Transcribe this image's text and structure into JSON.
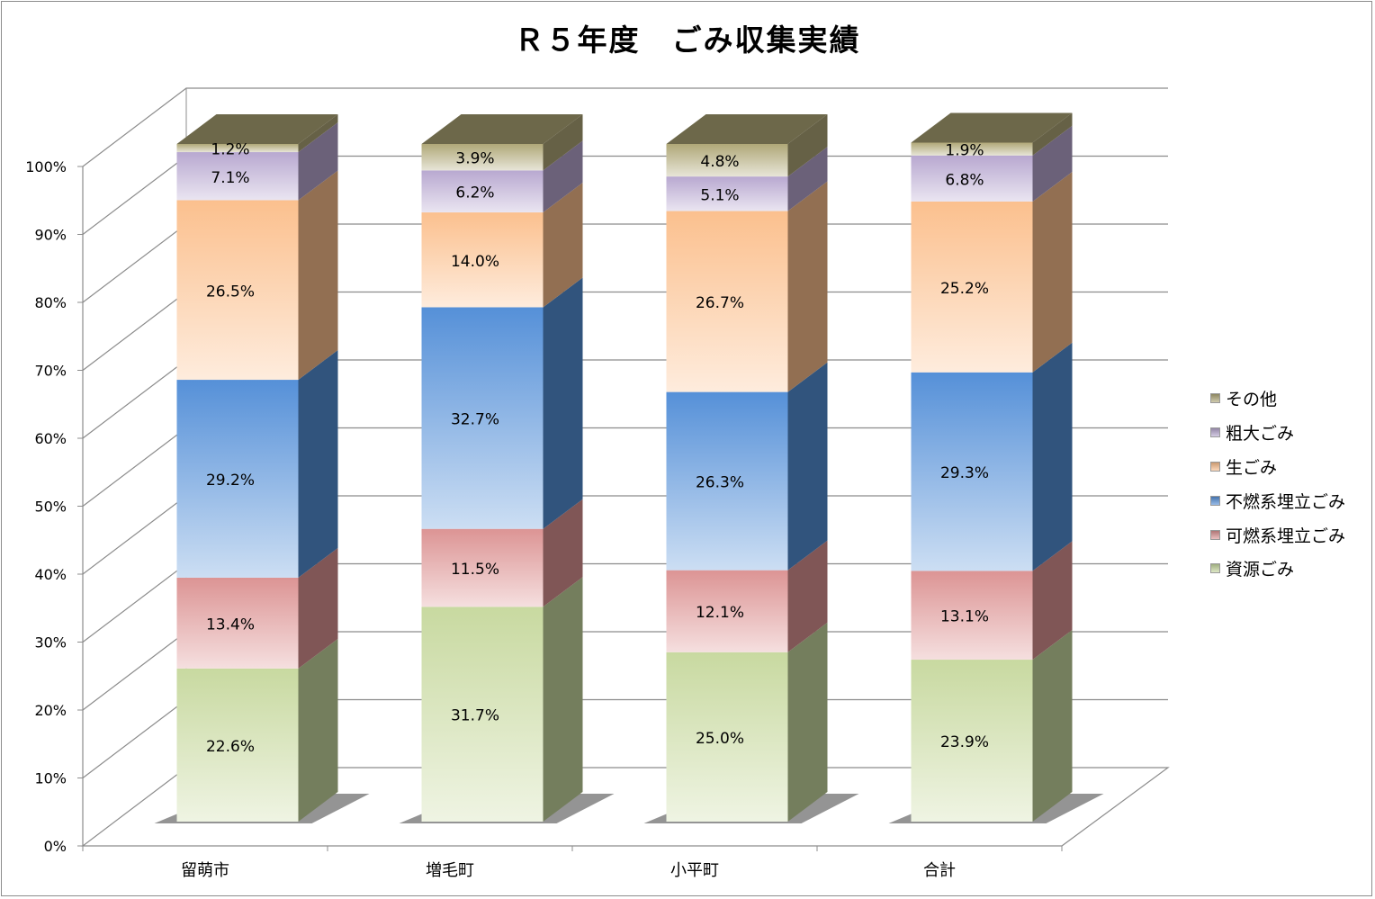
{
  "chart_data": {
    "type": "bar",
    "stacked": true,
    "percent_stacked": true,
    "three_d": true,
    "title": "Ｒ５年度　ごみ収集実績",
    "categories": [
      "留萌市",
      "増毛町",
      "小平町",
      "合計"
    ],
    "series": [
      {
        "name": "資源ごみ",
        "values": [
          22.6,
          31.7,
          25.0,
          23.9
        ],
        "color": "#c8d9a0"
      },
      {
        "name": "可燃系埋立ごみ",
        "values": [
          13.4,
          11.5,
          12.1,
          13.1
        ],
        "color": "#dc9494"
      },
      {
        "name": "不燃系埋立ごみ",
        "values": [
          29.2,
          32.7,
          26.3,
          29.3
        ],
        "color": "#5590d8"
      },
      {
        "name": "生ごみ",
        "values": [
          26.5,
          14.0,
          26.7,
          25.2
        ],
        "color": "#fbc08e"
      },
      {
        "name": "粗大ごみ",
        "values": [
          7.1,
          6.2,
          5.1,
          6.8
        ],
        "color": "#b8a8d0"
      },
      {
        "name": "その他",
        "values": [
          1.2,
          3.9,
          4.8,
          1.9
        ],
        "color": "#b0a878"
      }
    ],
    "yticks": [
      "0%",
      "10%",
      "20%",
      "30%",
      "40%",
      "50%",
      "60%",
      "70%",
      "80%",
      "90%",
      "100%"
    ],
    "ylim": [
      0,
      100
    ],
    "grid": true,
    "legend_position": "right"
  }
}
